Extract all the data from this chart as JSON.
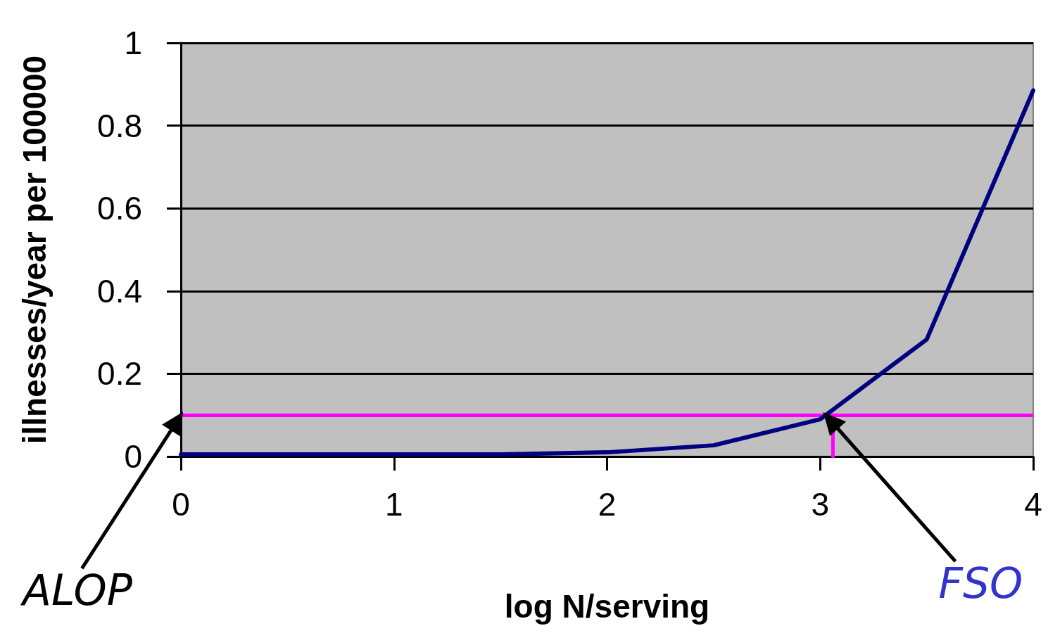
{
  "chart_data": {
    "type": "line",
    "xlabel": "log N/serving",
    "ylabel": "illnesses/year per 100000",
    "x": [
      0,
      0.5,
      1,
      1.5,
      2,
      2.5,
      3,
      3.5,
      4
    ],
    "series": [
      {
        "color": "#000080",
        "values": [
          0.005,
          0.005,
          0.005,
          0.005,
          0.01,
          0.027,
          0.09,
          0.283,
          0.885
        ]
      },
      {
        "color": "#ff00ff",
        "x": [
          3.06,
          3.06
        ],
        "values": [
          0,
          0.1
        ]
      }
    ],
    "ref_lines": [
      {
        "axis": "y",
        "value": 0.1,
        "color": "#ff00ff"
      }
    ],
    "annotations": [
      "ALOP",
      "FSO"
    ],
    "xlim": [
      0,
      4
    ],
    "xticks": [
      0,
      1,
      2,
      3,
      4
    ],
    "ylim": [
      0,
      1
    ],
    "yticks": [
      0,
      0.2,
      0.4,
      0.6,
      0.8,
      1
    ],
    "grid": "y",
    "marker": "none",
    "line_style": "solid"
  }
}
